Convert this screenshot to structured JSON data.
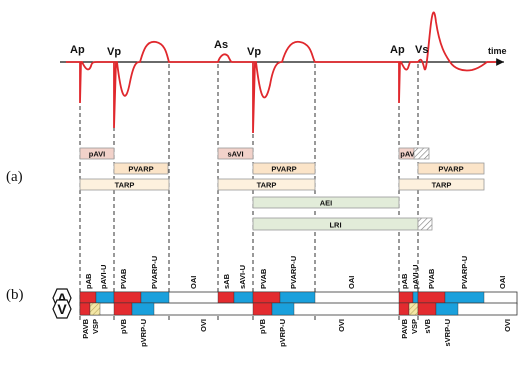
{
  "waveform": {
    "time_label": "time",
    "peaks": [
      "Ap",
      "Vp",
      "As",
      "Vp",
      "Ap",
      "Vs"
    ]
  },
  "panel_labels": [
    "(a)",
    "(b)"
  ],
  "timer_boxes": [
    {
      "label": "pAVI",
      "kind": "avi"
    },
    {
      "label": "PVARP",
      "kind": "pvarp"
    },
    {
      "label": "TARP",
      "kind": "tarp"
    },
    {
      "label": "sAVI",
      "kind": "avi"
    },
    {
      "label": "PVARP",
      "kind": "pvarp"
    },
    {
      "label": "TARP",
      "kind": "tarp"
    },
    {
      "label": "AEI",
      "kind": "aei"
    },
    {
      "label": "LRI",
      "kind": "lri"
    },
    {
      "label": "pAVI",
      "kind": "avi"
    },
    {
      "label": "PVARP",
      "kind": "pvarp"
    },
    {
      "label": "TARP",
      "kind": "tarp"
    }
  ],
  "channels": [
    {
      "name": "A",
      "labels": [
        "pAB",
        "pAVI-U",
        "PVAB",
        "PVARP-U",
        "OAI",
        "sAB",
        "sAVI-U",
        "PVAB",
        "PVARP-U",
        "OAI",
        "pAB",
        "pAVI-U",
        "PVAB",
        "PVARP-U",
        "OAI"
      ]
    },
    {
      "name": "V",
      "labels": [
        "PAVB",
        "VSP",
        "pVB",
        "pVRP-U",
        "OVI",
        "pVB",
        "pVRP-U",
        "OVI",
        "PAVB",
        "VSP",
        "sVB",
        "sVRP-U",
        "OVI"
      ]
    }
  ],
  "colors": {
    "signal": "#e0282d",
    "blanking_red": "#e32b2f",
    "refractory_blue": "#1aa0dc",
    "vsp_yellow": "#f4e7a6",
    "avi_box": "#f2d2ca",
    "pvarp_box": "#fbe4c8",
    "tarp_box": "#fdf1de",
    "interval_box": "#e2ecd9",
    "dashed": "#333333"
  }
}
